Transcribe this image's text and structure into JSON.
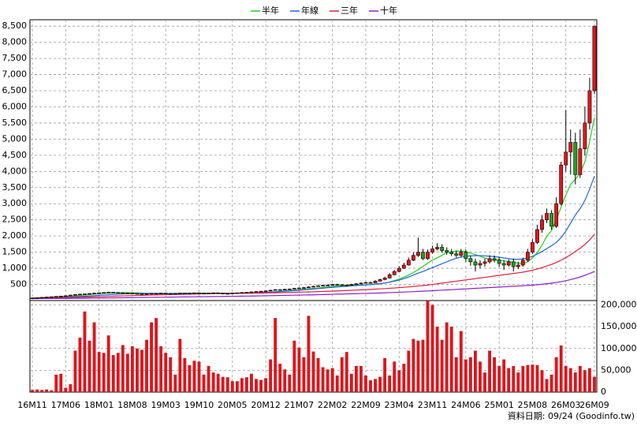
{
  "chart_data": {
    "type": "candlestick",
    "categories": [
      "16M11",
      null,
      null,
      null,
      null,
      null,
      null,
      "17M06",
      null,
      null,
      null,
      null,
      null,
      null,
      "18M01",
      null,
      null,
      null,
      null,
      null,
      null,
      "18M08",
      null,
      null,
      null,
      null,
      null,
      null,
      "19M03",
      null,
      null,
      null,
      null,
      null,
      null,
      "19M10",
      null,
      null,
      null,
      null,
      null,
      null,
      "20M05",
      null,
      null,
      null,
      null,
      null,
      null,
      "20M12",
      null,
      null,
      null,
      null,
      null,
      null,
      "21M07",
      null,
      null,
      null,
      null,
      null,
      null,
      "22M02",
      null,
      null,
      null,
      null,
      null,
      null,
      "22M09",
      null,
      null,
      null,
      null,
      null,
      null,
      "23M04",
      null,
      null,
      null,
      null,
      null,
      null,
      "23M11",
      null,
      null,
      null,
      null,
      null,
      null,
      "24M06",
      null,
      null,
      null,
      null,
      null,
      null,
      "25M01",
      null,
      null,
      null,
      null,
      null,
      null,
      "25M08",
      null,
      null,
      null,
      null,
      null,
      null,
      "26M03",
      null,
      null,
      null,
      null,
      null,
      "26M09"
    ],
    "open": [
      75,
      80,
      90,
      100,
      110,
      120,
      130,
      140,
      150,
      170,
      190,
      200,
      210,
      220,
      230,
      240,
      250,
      260,
      250,
      240,
      230,
      230,
      220,
      210,
      200,
      210,
      220,
      220,
      230,
      220,
      210,
      220,
      230,
      220,
      230,
      240,
      230,
      220,
      230,
      240,
      230,
      210,
      220,
      230,
      240,
      250,
      260,
      270,
      280,
      290,
      300,
      320,
      340,
      330,
      350,
      360,
      380,
      390,
      400,
      420,
      440,
      460,
      470,
      480,
      500,
      490,
      470,
      480,
      500,
      520,
      540,
      560,
      550,
      600,
      650,
      700,
      800,
      900,
      1000,
      1100,
      1250,
      1400,
      1500,
      1300,
      1500,
      1600,
      1650,
      1550,
      1500,
      1450,
      1400,
      1500,
      1300,
      1200,
      1100,
      1150,
      1200,
      1300,
      1250,
      1150,
      1100,
      1200,
      1050,
      1100,
      1250,
      1500,
      1800,
      2200,
      2500,
      2700,
      2300,
      3000,
      4200,
      4600,
      4900,
      3900,
      4700,
      5500,
      6500
    ],
    "high": [
      85,
      95,
      105,
      115,
      125,
      135,
      145,
      160,
      180,
      200,
      210,
      220,
      230,
      240,
      250,
      260,
      275,
      270,
      260,
      250,
      245,
      240,
      230,
      220,
      220,
      230,
      235,
      240,
      240,
      230,
      230,
      240,
      240,
      240,
      250,
      250,
      240,
      240,
      250,
      250,
      240,
      230,
      240,
      250,
      260,
      270,
      280,
      290,
      300,
      310,
      335,
      355,
      355,
      365,
      375,
      395,
      405,
      420,
      440,
      460,
      480,
      490,
      500,
      520,
      520,
      510,
      500,
      520,
      545,
      565,
      585,
      585,
      630,
      680,
      740,
      850,
      950,
      1060,
      1170,
      1330,
      1500,
      1950,
      1600,
      1580,
      1700,
      1780,
      1750,
      1650,
      1600,
      1550,
      1600,
      1580,
      1400,
      1300,
      1250,
      1300,
      1400,
      1400,
      1350,
      1250,
      1280,
      1300,
      1200,
      1330,
      1600,
      1900,
      2350,
      2650,
      2850,
      2800,
      3200,
      4300,
      5900,
      5300,
      5200,
      5300,
      6000,
      6900,
      8500
    ],
    "low": [
      70,
      75,
      85,
      95,
      105,
      115,
      125,
      135,
      145,
      165,
      185,
      195,
      205,
      215,
      225,
      235,
      245,
      240,
      230,
      220,
      220,
      210,
      200,
      190,
      195,
      200,
      210,
      215,
      210,
      200,
      200,
      210,
      210,
      210,
      220,
      220,
      210,
      210,
      220,
      220,
      190,
      200,
      210,
      220,
      230,
      240,
      250,
      260,
      270,
      280,
      290,
      310,
      320,
      320,
      340,
      350,
      370,
      380,
      390,
      410,
      430,
      450,
      455,
      465,
      475,
      450,
      455,
      465,
      485,
      505,
      525,
      530,
      540,
      590,
      630,
      680,
      780,
      880,
      980,
      1080,
      1220,
      1350,
      1250,
      1260,
      1450,
      1550,
      1480,
      1420,
      1380,
      1330,
      1350,
      1200,
      1080,
      900,
      1000,
      1050,
      1150,
      1180,
      1050,
      950,
      1050,
      900,
      980,
      1050,
      1200,
      1450,
      1750,
      2100,
      2400,
      2200,
      2250,
      2950,
      4000,
      3900,
      3600,
      3800,
      4500,
      5300,
      6400
    ],
    "close": [
      80,
      90,
      100,
      110,
      120,
      130,
      140,
      150,
      170,
      190,
      200,
      210,
      220,
      230,
      240,
      250,
      260,
      250,
      240,
      230,
      230,
      220,
      210,
      200,
      210,
      220,
      220,
      230,
      220,
      210,
      220,
      230,
      220,
      230,
      240,
      230,
      220,
      230,
      240,
      230,
      210,
      220,
      230,
      240,
      250,
      260,
      270,
      280,
      290,
      300,
      320,
      340,
      330,
      350,
      360,
      380,
      390,
      400,
      420,
      440,
      460,
      470,
      480,
      500,
      490,
      470,
      480,
      500,
      520,
      540,
      560,
      550,
      600,
      650,
      700,
      800,
      900,
      1000,
      1100,
      1250,
      1400,
      1500,
      1300,
      1500,
      1600,
      1650,
      1550,
      1500,
      1450,
      1400,
      1500,
      1300,
      1200,
      1100,
      1150,
      1200,
      1300,
      1250,
      1150,
      1100,
      1200,
      1050,
      1100,
      1250,
      1500,
      1800,
      2200,
      2500,
      2700,
      2300,
      3000,
      4200,
      4600,
      4900,
      3900,
      4700,
      5500,
      6500,
      8500
    ],
    "up_color": "#e8141a",
    "down_color": "#1aa31a",
    "ylim": [
      0,
      8700
    ],
    "yticks": [
      500,
      {
        "value": 1000,
        "label": "1,000"
      },
      {
        "value": 1500,
        "label": "1,500"
      },
      {
        "value": 2000,
        "label": "2,000"
      },
      {
        "value": 2500,
        "label": "2,500"
      },
      {
        "value": 3000,
        "label": "3,000"
      },
      {
        "value": 3500,
        "label": "3,500"
      },
      {
        "value": 4000,
        "label": "4,000"
      },
      {
        "value": 4500,
        "label": "4,500"
      },
      {
        "value": 5000,
        "label": "5,000"
      },
      {
        "value": 5500,
        "label": "5,500"
      },
      {
        "value": 6000,
        "label": "6,000"
      },
      {
        "value": 6500,
        "label": "6,500"
      },
      {
        "value": 7000,
        "label": "7,000"
      },
      {
        "value": 7500,
        "label": "7,500"
      },
      {
        "value": 8000,
        "label": "8,000"
      },
      {
        "value": 8500,
        "label": "8,500"
      }
    ],
    "grid": true,
    "legend": "top",
    "series": [
      {
        "name": "半年",
        "color": "#22cc22",
        "values": [
          80,
          85,
          88,
          93,
          100,
          107,
          115,
          123,
          135,
          147,
          160,
          173,
          187,
          200,
          212,
          222,
          232,
          240,
          245,
          247,
          247,
          243,
          238,
          232,
          225,
          218,
          213,
          212,
          213,
          217,
          221,
          222,
          223,
          225,
          227,
          228,
          228,
          228,
          228,
          230,
          231,
          230,
          229,
          227,
          225,
          224,
          227,
          232,
          242,
          253,
          263,
          273,
          285,
          298,
          312,
          325,
          337,
          350,
          363,
          377,
          392,
          407,
          423,
          440,
          455,
          465,
          473,
          480,
          485,
          483,
          485,
          492,
          505,
          520,
          545,
          575,
          617,
          665,
          725,
          792,
          867,
          958,
          1058,
          1158,
          1258,
          1325,
          1400,
          1492,
          1508,
          1533,
          1533,
          1517,
          1467,
          1425,
          1375,
          1317,
          1275,
          1242,
          1270,
          1230,
          1210,
          1180,
          1160,
          1140,
          1200,
          1320,
          1480,
          1720,
          1990,
          2170,
          2500,
          2900,
          3270,
          3600,
          3760,
          3950,
          4300,
          4930,
          5670
        ]
      },
      {
        "name": "年線",
        "color": "#1e64dc",
        "values": [
          80,
          82,
          85,
          88,
          92,
          96,
          101,
          107,
          114,
          121,
          128,
          135,
          143,
          152,
          162,
          172,
          181,
          190,
          198,
          206,
          212,
          217,
          221,
          224,
          225,
          225,
          225,
          224,
          222,
          221,
          220,
          220,
          221,
          221,
          221,
          222,
          222,
          223,
          224,
          224,
          225,
          226,
          227,
          228,
          230,
          233,
          237,
          242,
          248,
          254,
          261,
          269,
          278,
          288,
          298,
          309,
          320,
          332,
          345,
          358,
          371,
          385,
          398,
          410,
          421,
          432,
          443,
          454,
          465,
          475,
          485,
          496,
          510,
          526,
          545,
          570,
          600,
          635,
          680,
          730,
          790,
          850,
          900,
          960,
          1020,
          1080,
          1140,
          1200,
          1260,
          1310,
          1350,
          1370,
          1385,
          1390,
          1390,
          1385,
          1375,
          1360,
          1345,
          1320,
          1300,
          1280,
          1280,
          1290,
          1320,
          1370,
          1440,
          1520,
          1610,
          1700,
          1800,
          1950,
          2150,
          2400,
          2650,
          2850,
          3100,
          3450,
          3850
        ]
      },
      {
        "name": "三年",
        "color": "#e0203a",
        "values": [
          70,
          72,
          74,
          77,
          80,
          83,
          86,
          90,
          94,
          98,
          102,
          106,
          110,
          115,
          120,
          125,
          130,
          135,
          140,
          145,
          150,
          154,
          158,
          162,
          166,
          170,
          174,
          178,
          182,
          186,
          190,
          193,
          196,
          199,
          202,
          205,
          208,
          211,
          213,
          215,
          217,
          219,
          221,
          223,
          225,
          227,
          229,
          231,
          233,
          236,
          239,
          242,
          245,
          248,
          252,
          256,
          260,
          264,
          268,
          273,
          278,
          283,
          288,
          294,
          300,
          306,
          312,
          318,
          325,
          332,
          339,
          346,
          354,
          362,
          371,
          380,
          390,
          400,
          411,
          423,
          436,
          450,
          465,
          480,
          500,
          520,
          540,
          560,
          580,
          600,
          620,
          640,
          660,
          680,
          700,
          720,
          740,
          760,
          780,
          800,
          820,
          840,
          860,
          880,
          910,
          940,
          980,
          1020,
          1070,
          1120,
          1180,
          1250,
          1330,
          1420,
          1520,
          1620,
          1740,
          1880,
          2050
        ]
      },
      {
        "name": "十年",
        "color": "#8a1ec8",
        "values": [
          60,
          61,
          62,
          63,
          64,
          65,
          66,
          67,
          68,
          69,
          70,
          71,
          73,
          75,
          77,
          79,
          81,
          83,
          85,
          87,
          89,
          91,
          93,
          95,
          97,
          99,
          101,
          103,
          105,
          107,
          109,
          111,
          113,
          115,
          117,
          119,
          121,
          123,
          125,
          127,
          129,
          131,
          133,
          135,
          137,
          139,
          141,
          143,
          145,
          148,
          151,
          154,
          157,
          160,
          163,
          166,
          169,
          172,
          175,
          178,
          182,
          186,
          190,
          194,
          198,
          202,
          206,
          210,
          214,
          218,
          222,
          226,
          231,
          236,
          241,
          246,
          252,
          258,
          264,
          270,
          277,
          284,
          291,
          298,
          306,
          314,
          322,
          330,
          338,
          346,
          354,
          362,
          370,
          378,
          386,
          394,
          402,
          410,
          418,
          426,
          434,
          442,
          451,
          460,
          470,
          480,
          492,
          505,
          520,
          540,
          560,
          585,
          615,
          650,
          690,
          730,
          780,
          840,
          900
        ]
      }
    ],
    "volume": {
      "color": "#e0141a",
      "ylim": [
        0,
        210000
      ],
      "yticks": [
        0,
        {
          "value": 50000,
          "label": "50,000"
        },
        {
          "value": 100000,
          "label": "100,000"
        },
        {
          "value": 150000,
          "label": "150,000"
        },
        {
          "value": 200000,
          "label": "200,000"
        }
      ],
      "values": [
        5000,
        6000,
        5000,
        6000,
        4000,
        40000,
        42000,
        10000,
        18000,
        95000,
        125000,
        185000,
        118000,
        160000,
        92000,
        90000,
        130000,
        85000,
        90000,
        108000,
        88000,
        105000,
        100000,
        97000,
        120000,
        160000,
        170000,
        105000,
        90000,
        80000,
        40000,
        122000,
        78000,
        62000,
        72000,
        70000,
        40000,
        60000,
        45000,
        42000,
        35000,
        34000,
        25000,
        25000,
        32000,
        34000,
        42000,
        30000,
        28000,
        32000,
        75000,
        170000,
        65000,
        52000,
        40000,
        118000,
        102000,
        80000,
        175000,
        93000,
        78000,
        57000,
        52000,
        55000,
        38000,
        80000,
        92000,
        42000,
        60000,
        60000,
        38000,
        27000,
        30000,
        35000,
        78000,
        38000,
        70000,
        50000,
        65000,
        95000,
        122000,
        118000,
        120000,
        210000,
        200000,
        150000,
        120000,
        160000,
        150000,
        80000,
        140000,
        75000,
        80000,
        95000,
        70000,
        45000,
        95000,
        80000,
        60000,
        75000,
        55000,
        60000,
        45000,
        60000,
        62000,
        63000,
        62000,
        50000,
        30000,
        40000,
        80000,
        107000,
        60000,
        55000,
        45000,
        60000,
        50000,
        55000,
        35000
      ]
    },
    "source": "資料日期: 09/24 (Goodinfo.tw)"
  }
}
